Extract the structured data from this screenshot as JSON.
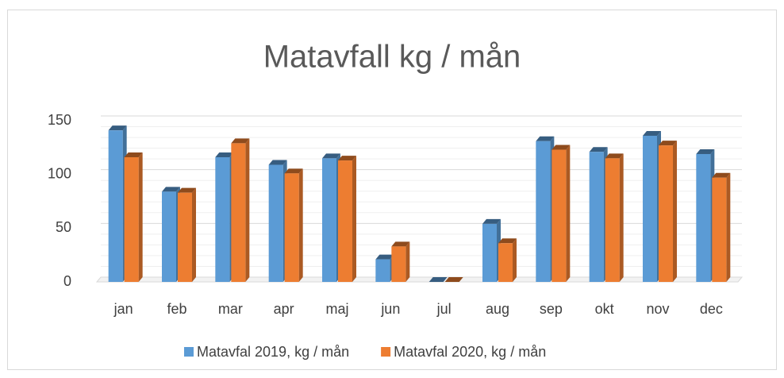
{
  "chart_data": {
    "type": "bar3d",
    "title": "Matavfall kg / mån",
    "categories": [
      "jan",
      "feb",
      "mar",
      "apr",
      "maj",
      "jun",
      "jul",
      "aug",
      "sep",
      "okt",
      "nov",
      "dec"
    ],
    "series": [
      {
        "name": "Matavfal 2019, kg / mån",
        "color": "#5b9bd5",
        "values": [
          141,
          84,
          116,
          109,
          115,
          21,
          0,
          54,
          131,
          121,
          136,
          119
        ]
      },
      {
        "name": "Matavfal 2020, kg / mån",
        "color": "#ed7d31",
        "values": [
          116,
          83,
          129,
          101,
          113,
          33,
          0,
          36,
          123,
          115,
          127,
          97
        ]
      }
    ],
    "ylim": [
      0,
      150
    ],
    "yticks": [
      0,
      50,
      100,
      150
    ],
    "minor_yticks": [
      10,
      20,
      30,
      40,
      60,
      70,
      80,
      90,
      110,
      120,
      130,
      140
    ],
    "grid": true,
    "legend": "bottom"
  }
}
